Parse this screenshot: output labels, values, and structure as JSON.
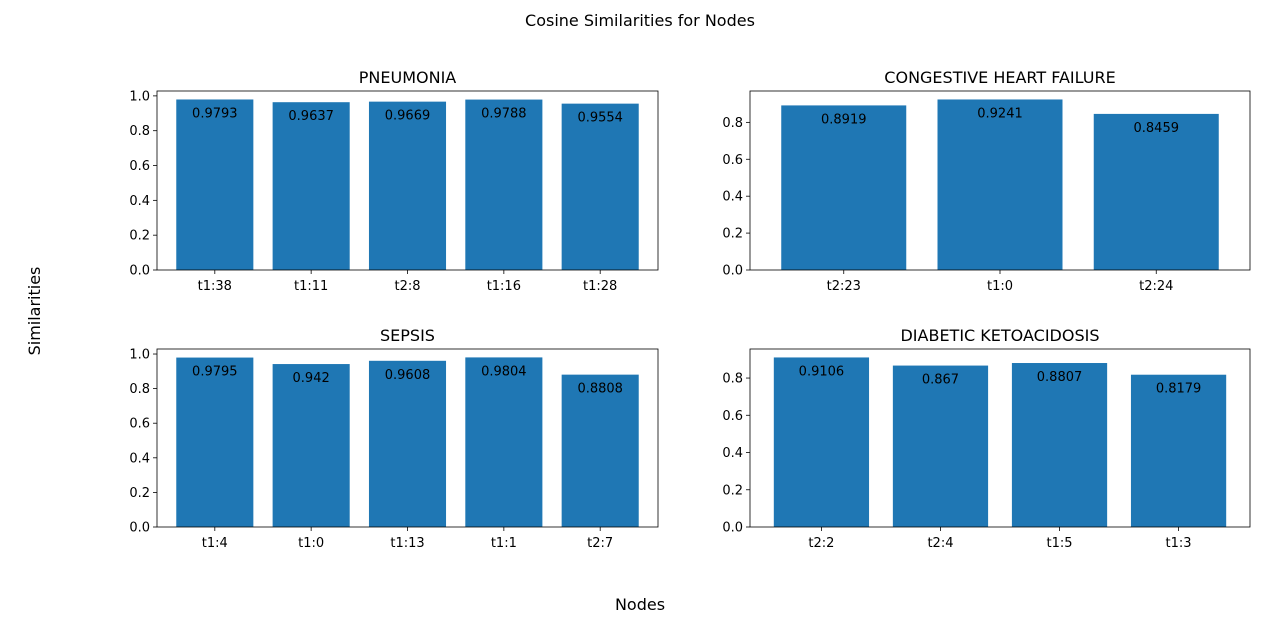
{
  "figure": {
    "title": "Cosine Similarities for Nodes",
    "xlabel": "Nodes",
    "ylabel": "Similarities",
    "bar_color": "#1f77b4"
  },
  "chart_data": [
    {
      "type": "bar",
      "title": "PNEUMONIA",
      "categories": [
        "t1:38",
        "t1:11",
        "t2:8",
        "t1:16",
        "t1:28"
      ],
      "values": [
        0.9793,
        0.9637,
        0.9669,
        0.9788,
        0.9554
      ],
      "value_labels": [
        "0.9793",
        "0.9637",
        "0.9669",
        "0.9788",
        "0.9554"
      ],
      "ylim": [
        0,
        1.028
      ],
      "yticks": [
        "0.0",
        "0.2",
        "0.4",
        "0.6",
        "0.8",
        "1.0"
      ]
    },
    {
      "type": "bar",
      "title": "CONGESTIVE HEART FAILURE",
      "categories": [
        "t2:23",
        "t1:0",
        "t2:24"
      ],
      "values": [
        0.8919,
        0.9241,
        0.8459
      ],
      "value_labels": [
        "0.8919",
        "0.9241",
        "0.8459"
      ],
      "ylim": [
        0,
        0.97
      ],
      "yticks": [
        "0.0",
        "0.2",
        "0.4",
        "0.6",
        "0.8"
      ]
    },
    {
      "type": "bar",
      "title": "SEPSIS",
      "categories": [
        "t1:4",
        "t1:0",
        "t1:13",
        "t1:1",
        "t2:7"
      ],
      "values": [
        0.9795,
        0.942,
        0.9608,
        0.9804,
        0.8808
      ],
      "value_labels": [
        "0.9795",
        "0.942",
        "0.9608",
        "0.9804",
        "0.8808"
      ],
      "ylim": [
        0,
        1.029
      ],
      "yticks": [
        "0.0",
        "0.2",
        "0.4",
        "0.6",
        "0.8",
        "1.0"
      ]
    },
    {
      "type": "bar",
      "title": "DIABETIC KETOACIDOSIS",
      "categories": [
        "t2:2",
        "t2:4",
        "t1:5",
        "t1:3"
      ],
      "values": [
        0.9106,
        0.867,
        0.8807,
        0.8179
      ],
      "value_labels": [
        "0.9106",
        "0.867",
        "0.8807",
        "0.8179"
      ],
      "ylim": [
        0,
        0.956
      ],
      "yticks": [
        "0.0",
        "0.2",
        "0.4",
        "0.6",
        "0.8"
      ]
    }
  ]
}
